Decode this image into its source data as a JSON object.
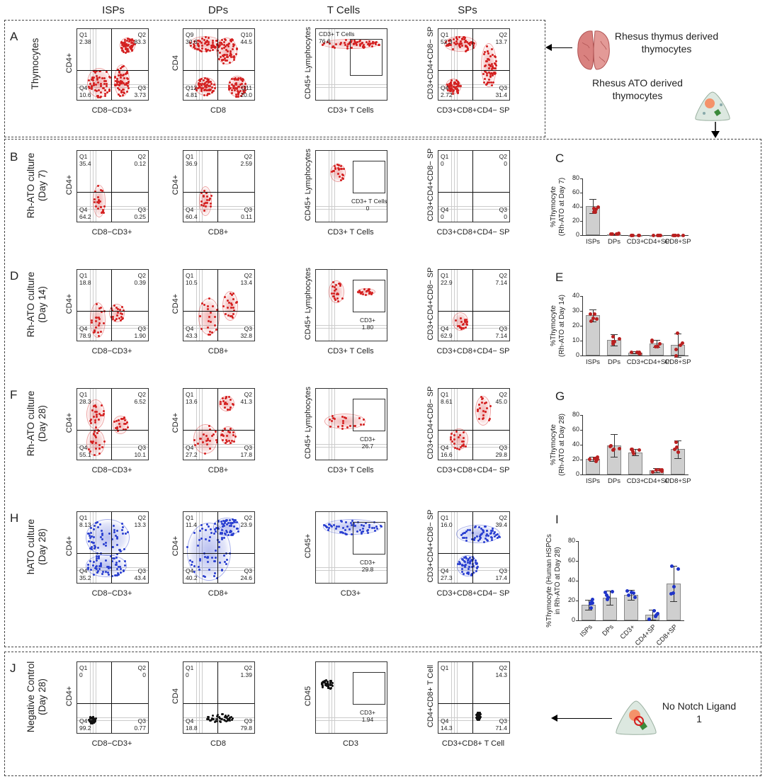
{
  "columns": [
    "ISPs",
    "DPs",
    "T Cells",
    "SPs"
  ],
  "panels": {
    "A": {
      "letter": "A",
      "row": "Thymocytes",
      "side": "Rhesus thymus derived thymocytes"
    },
    "B": {
      "letter": "B",
      "row": "Rh-ATO culture (Day 7)"
    },
    "D": {
      "letter": "D",
      "row": "Rh-ATO culture (Day 14)"
    },
    "F": {
      "letter": "F",
      "row": "Rh-ATO culture (Day 28)"
    },
    "H": {
      "letter": "H",
      "row": "hATO culture (Day 28)"
    },
    "J": {
      "letter": "J",
      "row": "Negative Control (Day 28)",
      "side": "No Notch Ligand 1"
    }
  },
  "ato_label": "Rhesus ATO derived thymocytes",
  "rows": [
    {
      "id": "A",
      "color": "#d42020",
      "plots": [
        {
          "x": "CD8−CD3+",
          "y": "CD4+",
          "q": [
            "Q1\n2.38",
            "Q2\n83.3",
            "Q4\n10.6",
            "Q3\n3.73"
          ]
        },
        {
          "x": "CD8",
          "y": "CD4",
          "q": [
            "Q9\n30.6",
            "Q10\n44.5",
            "Q12\n4.81",
            "Q11\n20.0"
          ]
        },
        {
          "x": "CD3+ T Cells",
          "y": "CD45+ Lymphocytes",
          "gate": "CD3+ T Cells\n76.6"
        },
        {
          "x": "CD3+CD8+CD4− SP",
          "y": "CD3+CD4+CD8− SP",
          "q": [
            "Q1\n52.3",
            "Q2\n13.7",
            "Q4\n2.72",
            "Q3\n31.4"
          ]
        }
      ]
    },
    {
      "id": "B",
      "color": "#d42020",
      "plots": [
        {
          "x": "CD8−CD3+",
          "y": "CD4+",
          "q": [
            "Q1\n35.4",
            "Q2\n0.12",
            "Q4\n64.2",
            "Q3\n0.25"
          ]
        },
        {
          "x": "CD8+",
          "y": "CD4+",
          "q": [
            "Q1\n36.9",
            "Q2\n2.59",
            "Q4\n60.4",
            "Q3\n0.11"
          ]
        },
        {
          "x": "CD3+ T Cells",
          "y": "CD45+ Lymphocytes",
          "gate": "CD3+ T Cells\n0"
        },
        {
          "x": "CD3+CD8+CD4− SP",
          "y": "CD3+CD4+CD8− SP",
          "q": [
            "Q1\n0",
            "Q2\n0",
            "Q4\n0",
            "Q3\n0"
          ]
        }
      ]
    },
    {
      "id": "D",
      "color": "#d42020",
      "plots": [
        {
          "x": "CD8−CD3+",
          "y": "CD4+",
          "q": [
            "Q1\n18.8",
            "Q2\n0.39",
            "Q4\n78.9",
            "Q3\n1.90"
          ]
        },
        {
          "x": "CD8+",
          "y": "CD4+",
          "q": [
            "Q1\n10.5",
            "Q2\n13.4",
            "Q4\n43.3",
            "Q3\n32.8"
          ]
        },
        {
          "x": "CD3+ T Cells",
          "y": "CD45+ Lymphocytes",
          "gate": "CD3+\n1.80"
        },
        {
          "x": "CD3+CD8+CD4− SP",
          "y": "CD3+CD4+CD8− SP",
          "q": [
            "Q1\n22.9",
            "Q2\n7.14",
            "Q4\n62.9",
            "Q3\n7.14"
          ]
        }
      ]
    },
    {
      "id": "F",
      "color": "#d42020",
      "plots": [
        {
          "x": "CD8−CD3+",
          "y": "CD4+",
          "q": [
            "Q1\n28.3",
            "Q2\n6.52",
            "Q4\n55.1",
            "Q3\n10.1"
          ]
        },
        {
          "x": "CD8+",
          "y": "CD4+",
          "q": [
            "Q1\n13.6",
            "Q2\n41.3",
            "Q4\n27.2",
            "Q3\n17.8"
          ]
        },
        {
          "x": "CD3+ T Cells",
          "y": "CD45+ Lymphocytes",
          "gate": "CD3+\n26.7"
        },
        {
          "x": "CD3+CD8+CD4− SP",
          "y": "CD3+CD4+CD8− SP",
          "q": [
            "Q1\n8.61",
            "Q2\n45.0",
            "Q4\n16.6",
            "Q3\n29.8"
          ]
        }
      ]
    },
    {
      "id": "H",
      "color": "#2a3fd0",
      "plots": [
        {
          "x": "CD8−CD3+",
          "y": "CD4+",
          "q": [
            "Q1\n8.13",
            "Q2\n13.3",
            "Q4\n35.2",
            "Q3\n43.4"
          ]
        },
        {
          "x": "CD8+",
          "y": "CD4+",
          "q": [
            "Q1\n11.4",
            "Q2\n23.9",
            "Q4\n40.2",
            "Q3\n24.6"
          ]
        },
        {
          "x": "CD3+",
          "y": "CD45+",
          "gate": "CD3+\n29.8"
        },
        {
          "x": "CD3+CD8+CD4− SP",
          "y": "CD3+CD4+CD8− SP",
          "q": [
            "Q1\n16.0",
            "Q2\n39.4",
            "Q4\n27.3",
            "Q3\n17.4"
          ]
        }
      ]
    },
    {
      "id": "J",
      "color": "#111111",
      "plots": [
        {
          "x": "CD8−CD3+",
          "y": "CD4+",
          "q": [
            "Q1\n0",
            "Q2\n0",
            "Q4\n99.2",
            "Q3\n0.77"
          ]
        },
        {
          "x": "CD8",
          "y": "CD4",
          "q": [
            "Q1\n0",
            "Q2\n1.39",
            "Q4\n18.8",
            "Q3\n79.8"
          ]
        },
        {
          "x": "CD3",
          "y": "CD45",
          "gate": "CD3+\n1.94"
        },
        {
          "x": "CD3+CD8+ T Cell",
          "y": "CD4+CD8+ T Cell",
          "q": [
            "Q1\n",
            "Q2\n14.3",
            "Q4\n14.3",
            "Q3\n71.4"
          ]
        }
      ]
    }
  ],
  "chart_data": [
    {
      "panel": "C",
      "type": "bar",
      "categories": [
        "ISPs",
        "DPs",
        "CD3+",
        "CD4+SP",
        "CD8+SP"
      ],
      "values": [
        41,
        1.5,
        0,
        0,
        0
      ],
      "err": [
        10,
        1,
        0,
        0,
        0
      ],
      "ylabel": "%Thymocyte\n(Rh-ATO at Day 7)",
      "ylim": [
        0,
        80
      ],
      "yticks": [
        0,
        20,
        40,
        60,
        80
      ],
      "color": "#b82020"
    },
    {
      "panel": "E",
      "type": "bar",
      "categories": [
        "ISPs",
        "DPs",
        "CD3+",
        "CD4+SP",
        "CD8+SP"
      ],
      "values": [
        27,
        10.5,
        2,
        8,
        7
      ],
      "err": [
        4,
        4,
        0.7,
        2.5,
        8
      ],
      "ylabel": "%Thymocyte\n(Rh-ATO at Day 14)",
      "ylim": [
        0,
        40
      ],
      "yticks": [
        0,
        10,
        20,
        30,
        40
      ],
      "color": "#b82020"
    },
    {
      "panel": "G",
      "type": "bar",
      "categories": [
        "ISPs",
        "DPs",
        "CD3+",
        "CD4+SP",
        "CD8+SP"
      ],
      "values": [
        21,
        39,
        30,
        6,
        34
      ],
      "err": [
        3,
        15,
        4,
        3,
        12
      ],
      "ylabel": "%Thymocyte\n(Rh-ATO at Day 28)",
      "ylim": [
        0,
        80
      ],
      "yticks": [
        0,
        20,
        40,
        60,
        80
      ],
      "color": "#b82020"
    },
    {
      "panel": "I",
      "type": "bar",
      "categories": [
        "ISPs",
        "DPs",
        "CD3+",
        "CD4+SP",
        "CD8+SP"
      ],
      "values": [
        16,
        23,
        26,
        6,
        37
      ],
      "err": [
        5,
        7,
        5,
        5,
        18
      ],
      "ylabel": "%Thymocyte (Human HSPCs\nin Rh-ATO at Day 28)",
      "ylim": [
        0,
        80
      ],
      "yticks": [
        0,
        20,
        40,
        60,
        80
      ],
      "color": "#1f34c8"
    }
  ]
}
